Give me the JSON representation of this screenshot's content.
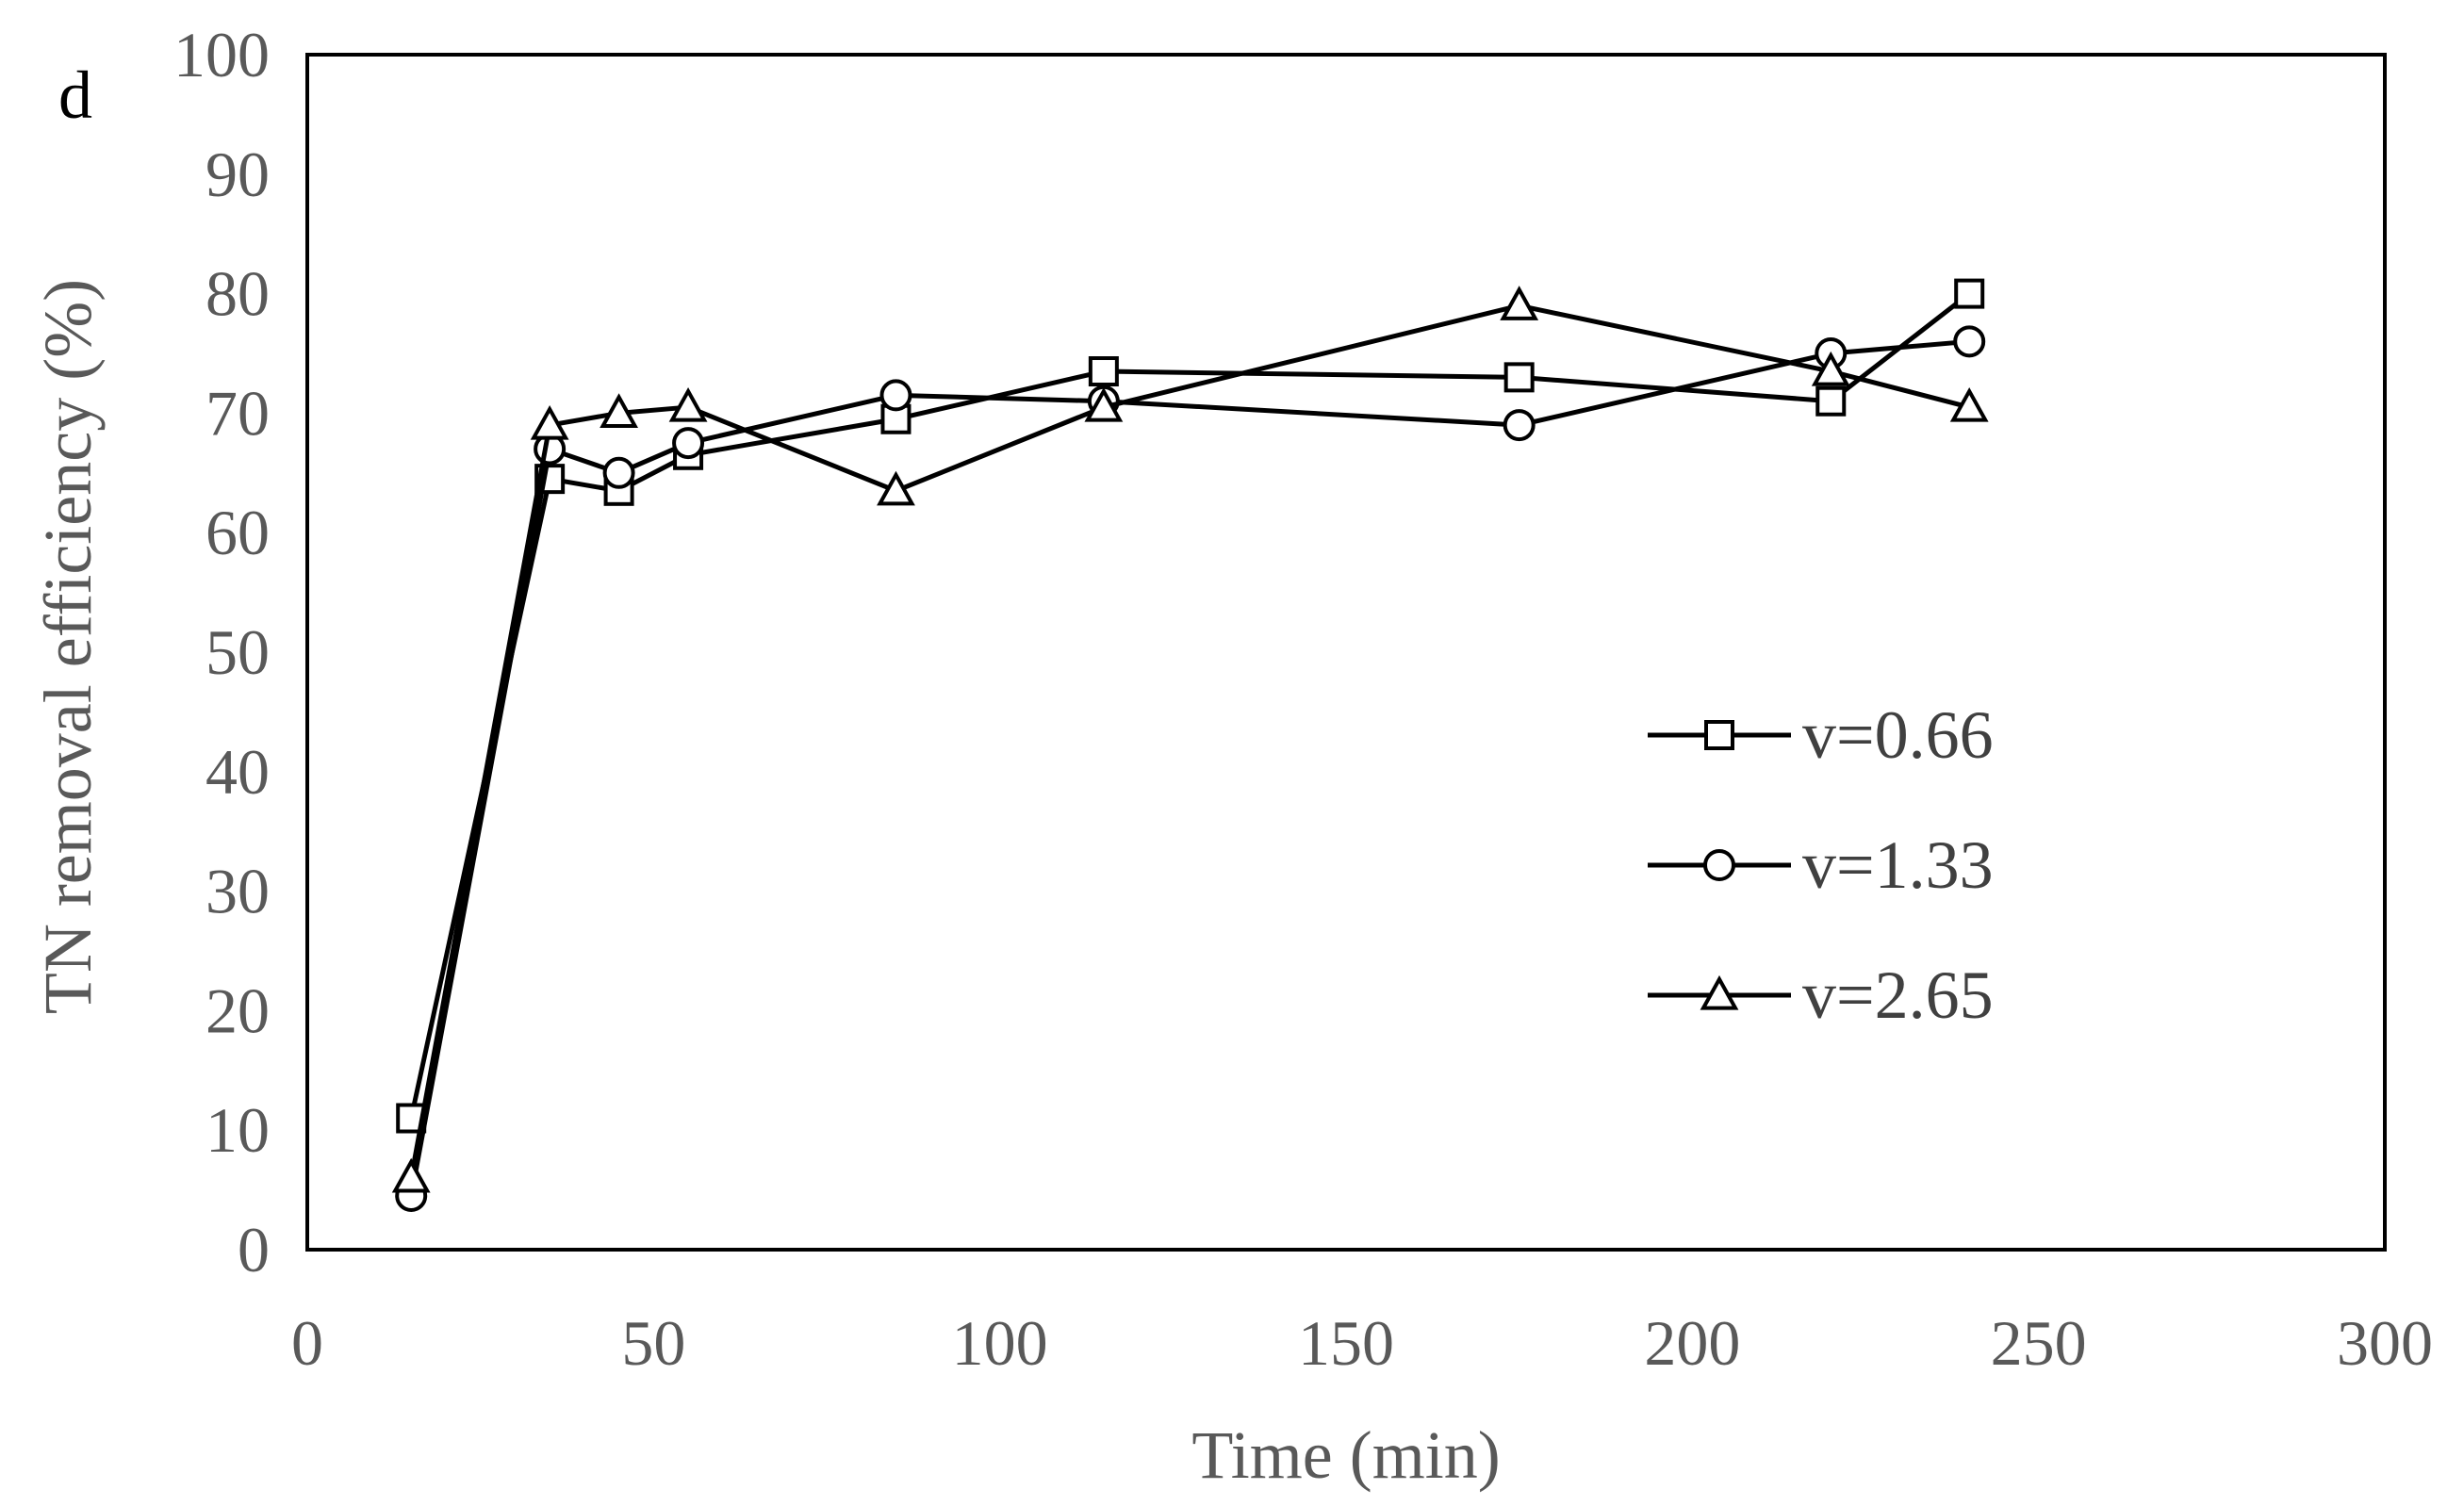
{
  "chart_data": {
    "type": "line",
    "panel_label": "d",
    "title": "",
    "xlabel": "Time (min)",
    "ylabel": "TN removal efficiency (%)",
    "xlim": [
      0,
      300
    ],
    "ylim": [
      0,
      100
    ],
    "xticks": [
      0,
      50,
      100,
      150,
      200,
      250,
      300
    ],
    "yticks": [
      0,
      10,
      20,
      30,
      40,
      50,
      60,
      70,
      80,
      90,
      100
    ],
    "grid": false,
    "legend_position": "right",
    "series": [
      {
        "name": "v=0.66",
        "marker": "square",
        "x": [
          15,
          35,
          45,
          55,
          85,
          115,
          175,
          220,
          240
        ],
        "y": [
          11,
          64.5,
          63.5,
          66.5,
          69.5,
          73.5,
          73,
          71,
          80
        ]
      },
      {
        "name": "v=1.33",
        "marker": "circle",
        "x": [
          15,
          35,
          45,
          55,
          85,
          115,
          175,
          220,
          240
        ],
        "y": [
          4.5,
          67,
          65,
          67.5,
          71.5,
          71,
          69,
          75,
          76
        ]
      },
      {
        "name": "v=2.65",
        "marker": "triangle",
        "x": [
          15,
          35,
          45,
          55,
          85,
          115,
          175,
          220,
          240
        ],
        "y": [
          6,
          69,
          70,
          70.5,
          63.5,
          70.5,
          79,
          73.5,
          70.5
        ]
      }
    ],
    "colors": {
      "line": "#000000",
      "tick_text": "#595959",
      "axis_title": "#595959",
      "legend_text": "#404040",
      "frame": "#000000"
    }
  }
}
